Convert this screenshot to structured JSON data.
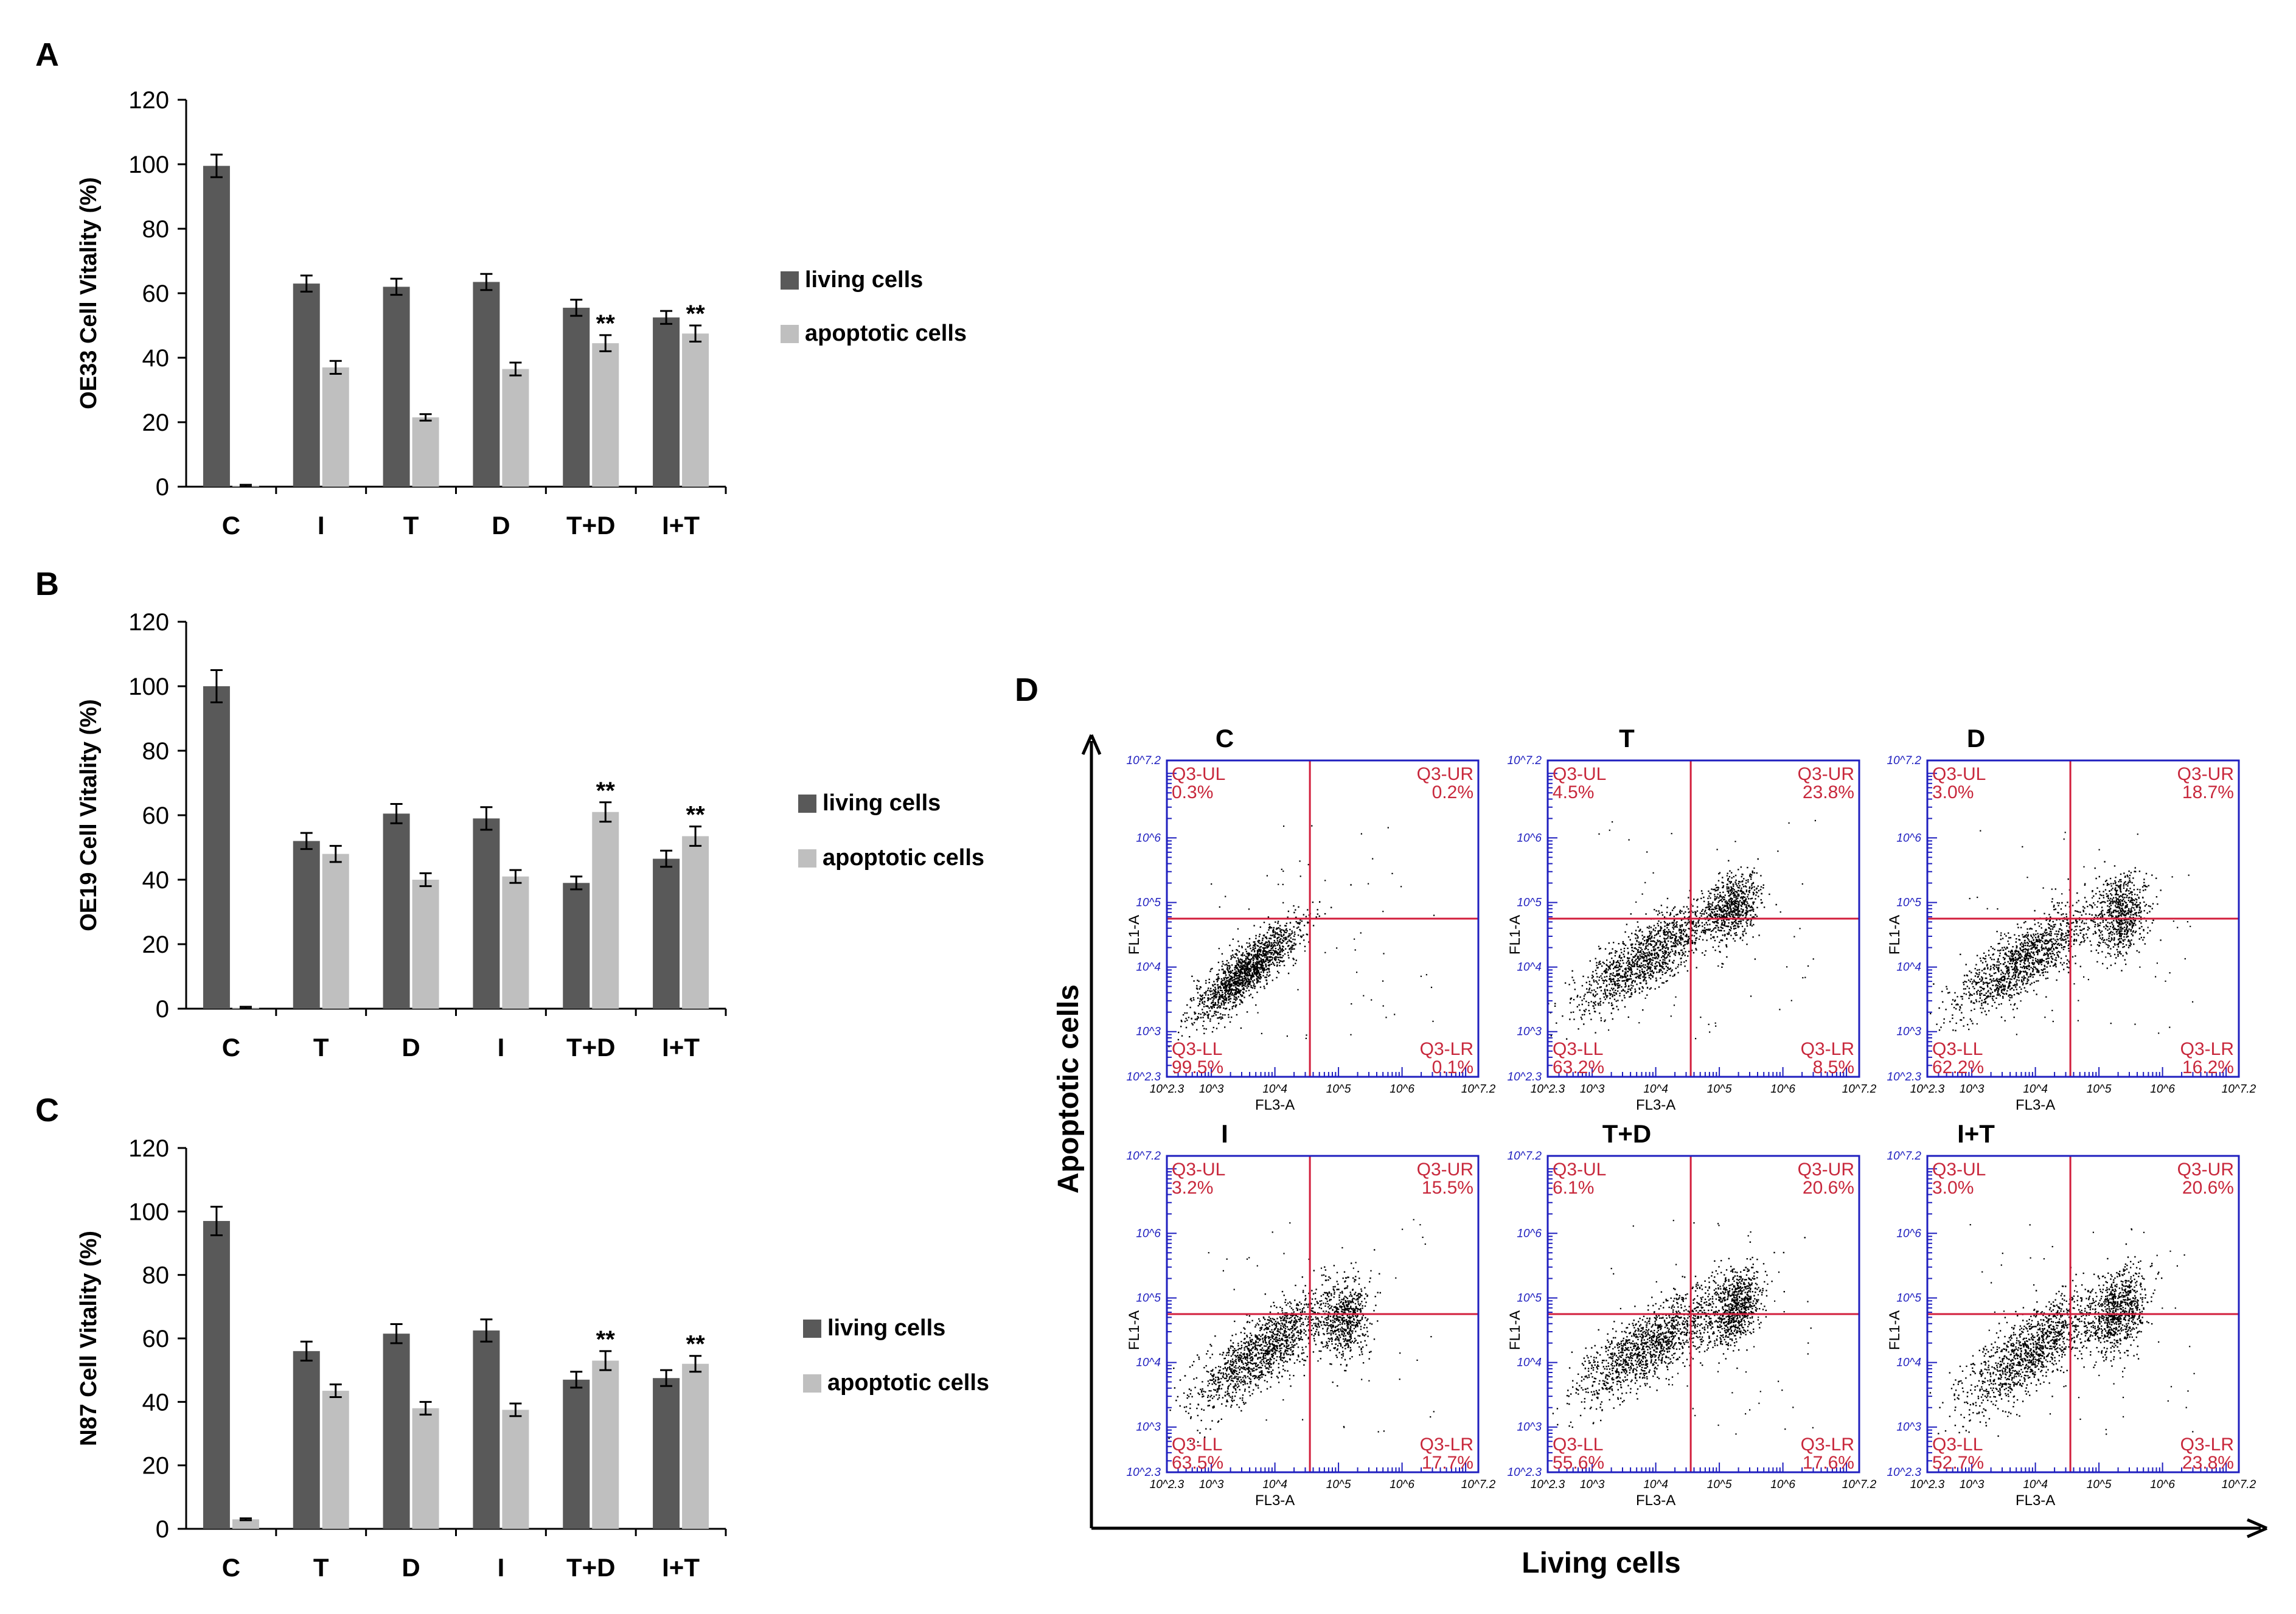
{
  "colors": {
    "living": "#595959",
    "apoptotic": "#bfbfbf",
    "axis": "#000000",
    "flow_frame": "#1f1fbf",
    "flow_gate": "#d21e3c",
    "flow_text": "#c8283c",
    "flow_tick": "#1f1fbf",
    "dots": "#000000"
  },
  "chart_data": [
    {
      "type": "bar",
      "panel": "A",
      "title": "",
      "ylabel": "OE33 Cell  Vitality (%)",
      "xlabel": "",
      "ylim": [
        0,
        120
      ],
      "yticks": [
        0,
        20,
        40,
        60,
        80,
        100,
        120
      ],
      "grid": false,
      "legend_position": "right",
      "categories": [
        "C",
        "I",
        "T",
        "D",
        "T+D",
        "I+T"
      ],
      "series": [
        {
          "name": "living cells",
          "values": [
            99.5,
            63,
            62,
            63.5,
            55.5,
            52.5
          ],
          "errors": [
            3.5,
            2.5,
            2.5,
            2.5,
            2.5,
            2
          ]
        },
        {
          "name": "apoptotic cells",
          "values": [
            0.3,
            37,
            21.5,
            36.5,
            44.5,
            47.5
          ],
          "errors": [
            0.3,
            2,
            1,
            2,
            2.5,
            2.5
          ]
        }
      ],
      "annotations": [
        "",
        "",
        "",
        "",
        "**",
        "**"
      ]
    },
    {
      "type": "bar",
      "panel": "B",
      "title": "",
      "ylabel": "OE19 Cell  Vitality (%)",
      "xlabel": "",
      "ylim": [
        0,
        120
      ],
      "yticks": [
        0,
        20,
        40,
        60,
        80,
        100,
        120
      ],
      "grid": false,
      "legend_position": "right",
      "categories": [
        "C",
        "T",
        "D",
        "I",
        "T+D",
        "I+T"
      ],
      "series": [
        {
          "name": "living cells",
          "values": [
            100,
            52,
            60.5,
            59,
            39,
            46.5
          ],
          "errors": [
            5,
            2.5,
            3,
            3.5,
            2,
            2.5
          ]
        },
        {
          "name": "apoptotic cells",
          "values": [
            0.3,
            48,
            40,
            41,
            61,
            53.5
          ],
          "errors": [
            0.3,
            2.5,
            2,
            2,
            3,
            3
          ]
        }
      ],
      "annotations": [
        "",
        "",
        "",
        "",
        "**",
        "**"
      ]
    },
    {
      "type": "bar",
      "panel": "C",
      "title": "",
      "ylabel": "N87 Cell  Vitality (%)",
      "xlabel": "",
      "ylim": [
        0,
        120
      ],
      "yticks": [
        0,
        20,
        40,
        60,
        80,
        100,
        120
      ],
      "grid": false,
      "legend_position": "right",
      "categories": [
        "C",
        "T",
        "D",
        "I",
        "T+D",
        "I+T"
      ],
      "series": [
        {
          "name": "living cells",
          "values": [
            97,
            56,
            61.5,
            62.5,
            47,
            47.5
          ],
          "errors": [
            4.5,
            3,
            3,
            3.5,
            2.5,
            2.5
          ]
        },
        {
          "name": "apoptotic cells",
          "values": [
            3,
            43.5,
            38,
            37.5,
            53,
            52
          ],
          "errors": [
            0.3,
            2,
            2,
            2,
            3,
            2.5
          ]
        }
      ],
      "annotations": [
        "",
        "",
        "",
        "",
        "**",
        "**"
      ]
    },
    {
      "type": "scatter",
      "panel": "D",
      "title": "",
      "xlabel": "Living cells",
      "ylabel": "Apoptotic cells",
      "xlim": [
        2.3,
        7.2
      ],
      "ylim": [
        2.3,
        7.2
      ],
      "x_axis_name": "FL3-A",
      "y_axis_name": "FL1-A",
      "tick_labels": [
        "10^2.3",
        "10^3",
        "10^4",
        "10^5",
        "10^6",
        "10^7.2"
      ],
      "quadrant_names": {
        "ul": "Q3-UL",
        "ur": "Q3-UR",
        "ll": "Q3-LL",
        "lr": "Q3-LR"
      },
      "gate": {
        "x": 4.55,
        "y": 4.75
      },
      "plots": [
        {
          "label": "C",
          "ul": "0.3%",
          "ur": "0.2%",
          "ll": "99.5%",
          "lr": "0.1%",
          "clusters": [
            {
              "cx": 3.55,
              "cy": 3.95,
              "sx": 0.42,
              "sy": 0.38,
              "rho": 0.85,
              "n": 1500
            }
          ]
        },
        {
          "label": "T",
          "ul": "4.5%",
          "ur": "23.8%",
          "ll": "63.2%",
          "lr": "8.5%",
          "clusters": [
            {
              "cx": 3.85,
              "cy": 4.15,
              "sx": 0.55,
              "sy": 0.42,
              "rho": 0.8,
              "n": 1300
            },
            {
              "cx": 5.2,
              "cy": 4.95,
              "sx": 0.2,
              "sy": 0.26,
              "rho": 0.3,
              "n": 650
            }
          ]
        },
        {
          "label": "D",
          "ul": "3.0%",
          "ur": "18.7%",
          "ll": "62.2%",
          "lr": "16.2%",
          "clusters": [
            {
              "cx": 3.85,
              "cy": 4.15,
              "sx": 0.55,
              "sy": 0.42,
              "rho": 0.8,
              "n": 1250
            },
            {
              "cx": 5.35,
              "cy": 4.8,
              "sx": 0.2,
              "sy": 0.3,
              "rho": 0.2,
              "n": 650
            }
          ]
        },
        {
          "label": "I",
          "ul": "3.2%",
          "ur": "15.5%",
          "ll": "63.5%",
          "lr": "17.7%",
          "clusters": [
            {
              "cx": 3.8,
              "cy": 4.2,
              "sx": 0.55,
              "sy": 0.45,
              "rho": 0.8,
              "n": 1350
            },
            {
              "cx": 5.1,
              "cy": 4.65,
              "sx": 0.18,
              "sy": 0.3,
              "rho": 0.2,
              "n": 550
            }
          ]
        },
        {
          "label": "T+D",
          "ul": "6.1%",
          "ur": "20.6%",
          "ll": "55.6%",
          "lr": "17.6%",
          "clusters": [
            {
              "cx": 3.95,
              "cy": 4.3,
              "sx": 0.6,
              "sy": 0.45,
              "rho": 0.78,
              "n": 1350
            },
            {
              "cx": 5.25,
              "cy": 4.85,
              "sx": 0.2,
              "sy": 0.3,
              "rho": 0.3,
              "n": 700
            }
          ]
        },
        {
          "label": "I+T",
          "ul": "3.0%",
          "ur": "20.6%",
          "ll": "52.7%",
          "lr": "23.8%",
          "clusters": [
            {
              "cx": 3.95,
              "cy": 4.2,
              "sx": 0.55,
              "sy": 0.45,
              "rho": 0.78,
              "n": 1250
            },
            {
              "cx": 5.3,
              "cy": 4.8,
              "sx": 0.22,
              "sy": 0.32,
              "rho": 0.3,
              "n": 750
            }
          ]
        }
      ]
    }
  ]
}
